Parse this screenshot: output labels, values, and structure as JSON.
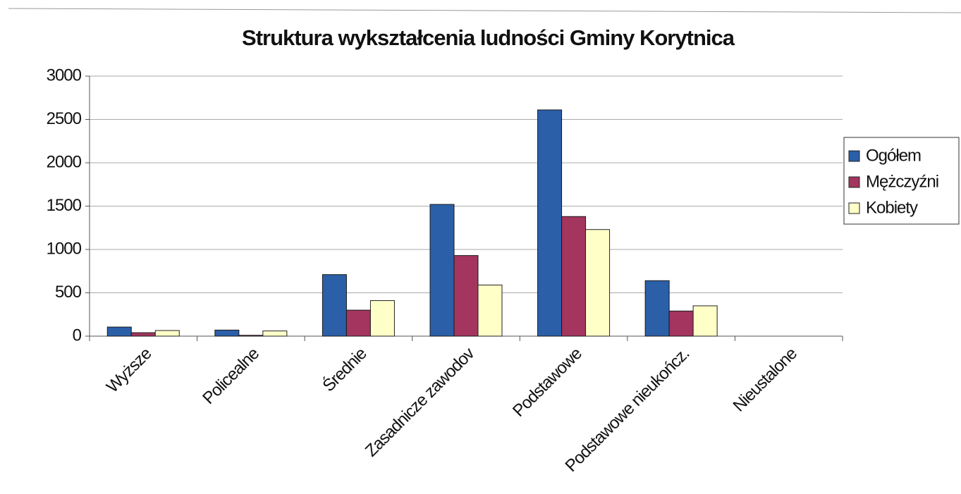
{
  "chart_data": {
    "type": "bar",
    "title": "Struktura wykształcenia ludności Gminy Korytnica",
    "categories": [
      "Wyższe",
      "Policealne",
      "Średnie",
      "Zasadnicze zawodov",
      "Podstawowe",
      "Podstawowe nieukończ.",
      "Nieustalone"
    ],
    "series": [
      {
        "name": "Ogółem",
        "color": "#2b5fa8",
        "values": [
          105,
          70,
          710,
          1520,
          2610,
          640,
          0
        ]
      },
      {
        "name": "Mężczyźni",
        "color": "#a3355e",
        "values": [
          40,
          10,
          300,
          930,
          1380,
          290,
          0
        ]
      },
      {
        "name": "Kobiety",
        "color": "#ffffc8",
        "values": [
          65,
          60,
          410,
          590,
          1230,
          350,
          0
        ]
      }
    ],
    "ylim": [
      0,
      3000
    ],
    "yticks": [
      0,
      500,
      1000,
      1500,
      2000,
      2500,
      3000
    ],
    "grid": true,
    "legend": "right"
  }
}
